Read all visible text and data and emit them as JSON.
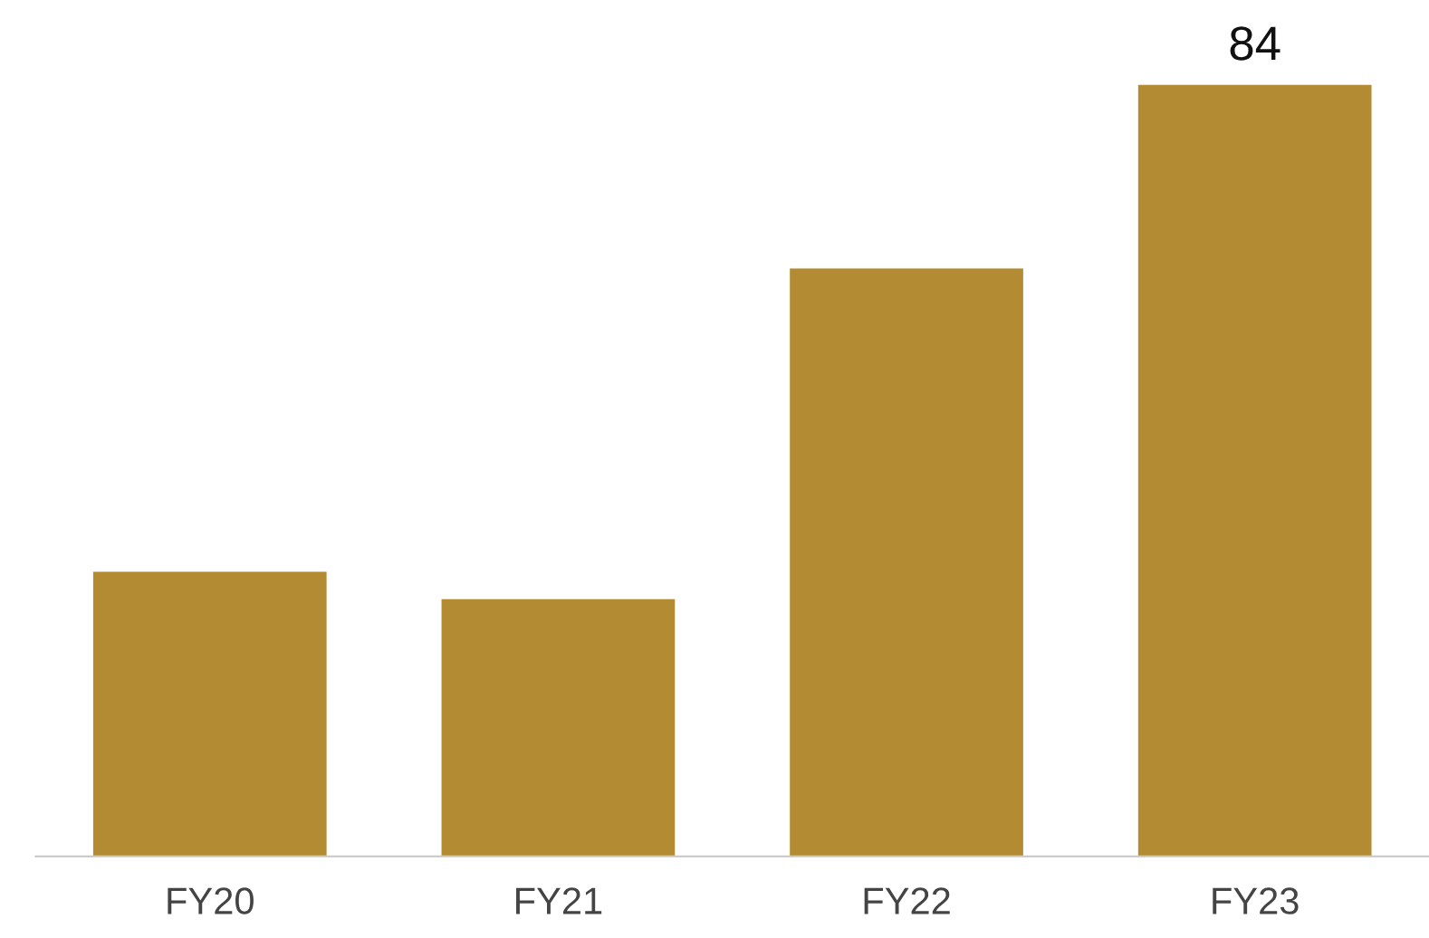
{
  "chart_data": {
    "type": "bar",
    "categories": [
      "FY20",
      "FY21",
      "FY22",
      "FY23"
    ],
    "values": [
      31,
      28,
      64,
      84
    ],
    "value_labels": [
      null,
      null,
      null,
      "84"
    ],
    "color": "#b38b32",
    "grid": false,
    "legend": false
  }
}
